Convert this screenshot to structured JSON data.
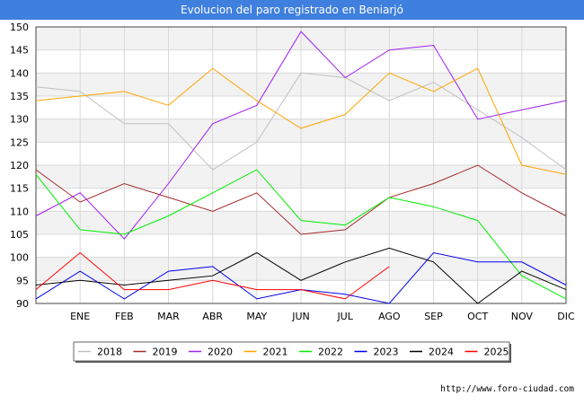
{
  "chart_data": {
    "type": "line",
    "title": "Evolucion del paro registrado en Beniarjó",
    "xlabel": "",
    "ylabel": "",
    "categories": [
      "",
      "ENE",
      "FEB",
      "MAR",
      "ABR",
      "MAY",
      "JUN",
      "JUL",
      "AGO",
      "SEP",
      "OCT",
      "NOV",
      "DIC"
    ],
    "x_tick_labels": [
      "ENE",
      "FEB",
      "MAR",
      "ABR",
      "MAY",
      "JUN",
      "JUL",
      "AGO",
      "SEP",
      "OCT",
      "NOV",
      "DIC"
    ],
    "ylim": [
      90,
      150
    ],
    "yticks": [
      90,
      95,
      100,
      105,
      110,
      115,
      120,
      125,
      130,
      135,
      140,
      145,
      150
    ],
    "grid": true,
    "legend_position": "bottom",
    "series": [
      {
        "name": "2018",
        "color": "#c0c0c0",
        "values": [
          137,
          136,
          129,
          129,
          119,
          125,
          140,
          139,
          134,
          138,
          132,
          126,
          119
        ]
      },
      {
        "name": "2019",
        "color": "#a52a2a",
        "values": [
          119,
          112,
          116,
          113,
          110,
          114,
          105,
          106,
          113,
          116,
          120,
          114,
          109
        ]
      },
      {
        "name": "2020",
        "color": "#a020f0",
        "values": [
          109,
          114,
          104,
          116,
          129,
          133,
          149,
          139,
          145,
          146,
          130,
          132,
          134
        ]
      },
      {
        "name": "2021",
        "color": "#ffa500",
        "values": [
          134,
          135,
          136,
          133,
          141,
          134,
          128,
          131,
          140,
          136,
          141,
          120,
          118
        ]
      },
      {
        "name": "2022",
        "color": "#00ee00",
        "values": [
          118,
          106,
          105,
          109,
          114,
          119,
          108,
          107,
          113,
          111,
          108,
          96,
          91
        ]
      },
      {
        "name": "2023",
        "color": "#0000ee",
        "values": [
          91,
          97,
          91,
          97,
          98,
          91,
          93,
          92,
          90,
          101,
          99,
          99,
          94
        ]
      },
      {
        "name": "2024",
        "color": "#000000",
        "values": [
          94,
          95,
          94,
          95,
          96,
          101,
          95,
          99,
          102,
          99,
          90,
          97,
          93
        ]
      },
      {
        "name": "2025",
        "color": "#ff0000",
        "values": [
          93,
          101,
          93,
          93,
          95,
          93,
          93,
          91,
          98,
          null,
          null,
          null,
          null
        ]
      }
    ]
  },
  "footer": {
    "url": "http://www.foro-ciudad.com"
  }
}
